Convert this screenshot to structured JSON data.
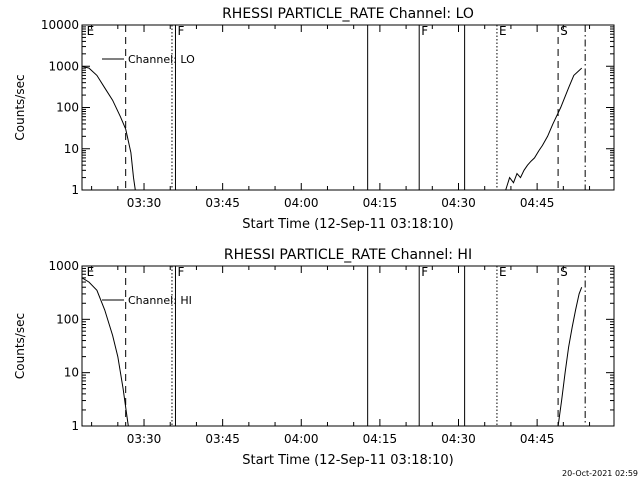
{
  "footer": {
    "timestamp": "20-Oct-2021 02:59"
  },
  "chart_data": [
    {
      "type": "line",
      "title": "RHESSI PARTICLE_RATE Channel: LO",
      "xlabel": "Start Time (12-Sep-11 03:18:10)",
      "ylabel": "Counts/sec",
      "yscale": "log",
      "ylim": [
        1,
        10000
      ],
      "xlim": [
        "03:18:10",
        "04:59:40"
      ],
      "x_ticks": [
        "03:30",
        "03:45",
        "04:00",
        "04:15",
        "04:30",
        "04:45"
      ],
      "y_ticks": [
        "1",
        "10",
        "100",
        "1000",
        "10000"
      ],
      "legend": {
        "placement": "top-left",
        "entries": [
          "Channel: LO"
        ]
      },
      "grid": false,
      "series": [
        {
          "name": "Channel: LO",
          "segments": [
            [
              [
                "03:18:10",
                1000
              ],
              [
                "03:19:30",
                900
              ],
              [
                "03:21:00",
                600
              ],
              [
                "03:22:30",
                300
              ],
              [
                "03:24:00",
                150
              ],
              [
                "03:25:30",
                60
              ],
              [
                "03:26:30",
                30
              ],
              [
                "03:27:30",
                8
              ],
              [
                "03:28:00",
                2
              ],
              [
                "03:28:20",
                1
              ]
            ],
            [
              [
                "04:39:00",
                1
              ],
              [
                "04:39:45",
                2
              ],
              [
                "04:40:30",
                1.5
              ],
              [
                "04:41:10",
                2.5
              ],
              [
                "04:41:50",
                2
              ],
              [
                "04:42:30",
                3
              ],
              [
                "04:43:10",
                4
              ],
              [
                "04:43:50",
                5
              ],
              [
                "04:44:30",
                6
              ],
              [
                "04:45:20",
                9
              ],
              [
                "04:46:00",
                12
              ],
              [
                "04:47:00",
                20
              ],
              [
                "04:48:00",
                40
              ],
              [
                "04:49:30",
                100
              ],
              [
                "04:51:00",
                300
              ],
              [
                "04:52:00",
                600
              ],
              [
                "04:53:30",
                900
              ]
            ]
          ]
        }
      ],
      "markers": [
        {
          "time": "03:18:40",
          "style": "none",
          "label": "E"
        },
        {
          "time": "03:26:30",
          "style": "dashed",
          "label": ""
        },
        {
          "time": "03:35:20",
          "style": "dotted",
          "label": ""
        },
        {
          "time": "03:36:00",
          "style": "solid",
          "label": "F"
        },
        {
          "time": "04:12:40",
          "style": "solid",
          "label": ""
        },
        {
          "time": "04:22:30",
          "style": "solid",
          "label": "F"
        },
        {
          "time": "04:31:10",
          "style": "solid",
          "label": ""
        },
        {
          "time": "04:37:20",
          "style": "dotted",
          "label": "E"
        },
        {
          "time": "04:49:00",
          "style": "dashed",
          "label": "S"
        },
        {
          "time": "04:54:10",
          "style": "dashdot",
          "label": ""
        }
      ]
    },
    {
      "type": "line",
      "title": "RHESSI PARTICLE_RATE Channel: HI",
      "xlabel": "Start Time (12-Sep-11 03:18:10)",
      "ylabel": "Counts/sec",
      "yscale": "log",
      "ylim": [
        1,
        1000
      ],
      "xlim": [
        "03:18:10",
        "04:59:40"
      ],
      "x_ticks": [
        "03:30",
        "03:45",
        "04:00",
        "04:15",
        "04:30",
        "04:45"
      ],
      "y_ticks": [
        "1",
        "10",
        "100",
        "1000"
      ],
      "legend": {
        "placement": "top-left",
        "entries": [
          "Channel: HI"
        ]
      },
      "grid": false,
      "series": [
        {
          "name": "Channel: HI",
          "segments": [
            [
              [
                "03:18:10",
                600
              ],
              [
                "03:19:30",
                500
              ],
              [
                "03:21:00",
                350
              ],
              [
                "03:22:30",
                150
              ],
              [
                "03:24:00",
                50
              ],
              [
                "03:25:00",
                20
              ],
              [
                "03:26:00",
                5
              ],
              [
                "03:27:00",
                1
              ]
            ],
            [
              [
                "04:49:00",
                1
              ],
              [
                "04:49:40",
                3
              ],
              [
                "04:50:20",
                10
              ],
              [
                "04:51:00",
                30
              ],
              [
                "04:51:40",
                70
              ],
              [
                "04:52:20",
                150
              ],
              [
                "04:53:00",
                300
              ],
              [
                "04:53:30",
                400
              ]
            ]
          ]
        }
      ],
      "markers": [
        {
          "time": "03:18:40",
          "style": "none",
          "label": "E"
        },
        {
          "time": "03:26:30",
          "style": "dashed",
          "label": ""
        },
        {
          "time": "03:35:20",
          "style": "dotted",
          "label": ""
        },
        {
          "time": "03:36:00",
          "style": "solid",
          "label": "F"
        },
        {
          "time": "04:12:40",
          "style": "solid",
          "label": ""
        },
        {
          "time": "04:22:30",
          "style": "solid",
          "label": "F"
        },
        {
          "time": "04:31:10",
          "style": "solid",
          "label": ""
        },
        {
          "time": "04:37:20",
          "style": "dotted",
          "label": "E"
        },
        {
          "time": "04:49:00",
          "style": "dashed",
          "label": "S"
        },
        {
          "time": "04:54:10",
          "style": "dashdot",
          "label": ""
        }
      ]
    }
  ]
}
